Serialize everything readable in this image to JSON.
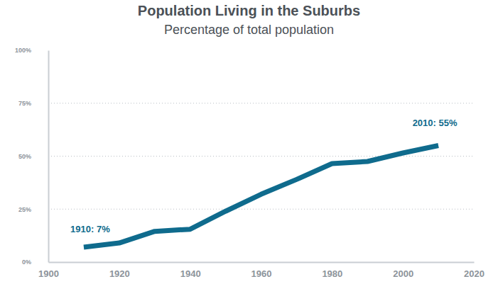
{
  "chart_data": {
    "type": "line",
    "title": "Population Living in the Suburbs",
    "subtitle": "Percentage of total population",
    "x": [
      1910,
      1920,
      1930,
      1940,
      1950,
      1960,
      1970,
      1980,
      1990,
      2000,
      2010
    ],
    "values": [
      7,
      9,
      14.5,
      15.5,
      24,
      32,
      39,
      46.5,
      47.5,
      51.5,
      55
    ],
    "color": "#0f6b8d",
    "annotations": [
      "1910: 7%",
      "2010: 55%"
    ],
    "xlim": [
      1900,
      2020
    ],
    "xticks": [
      1900,
      1920,
      1940,
      1960,
      1980,
      2000,
      2020
    ],
    "ylim": [
      0,
      100
    ],
    "yticks": [
      {
        "value": 0,
        "label": "0%"
      },
      {
        "value": 25,
        "label": "25%"
      },
      {
        "value": 50,
        "label": "50%"
      },
      {
        "value": 75,
        "label": "75%"
      },
      {
        "value": 100,
        "label": "100%"
      }
    ],
    "grid": true
  }
}
